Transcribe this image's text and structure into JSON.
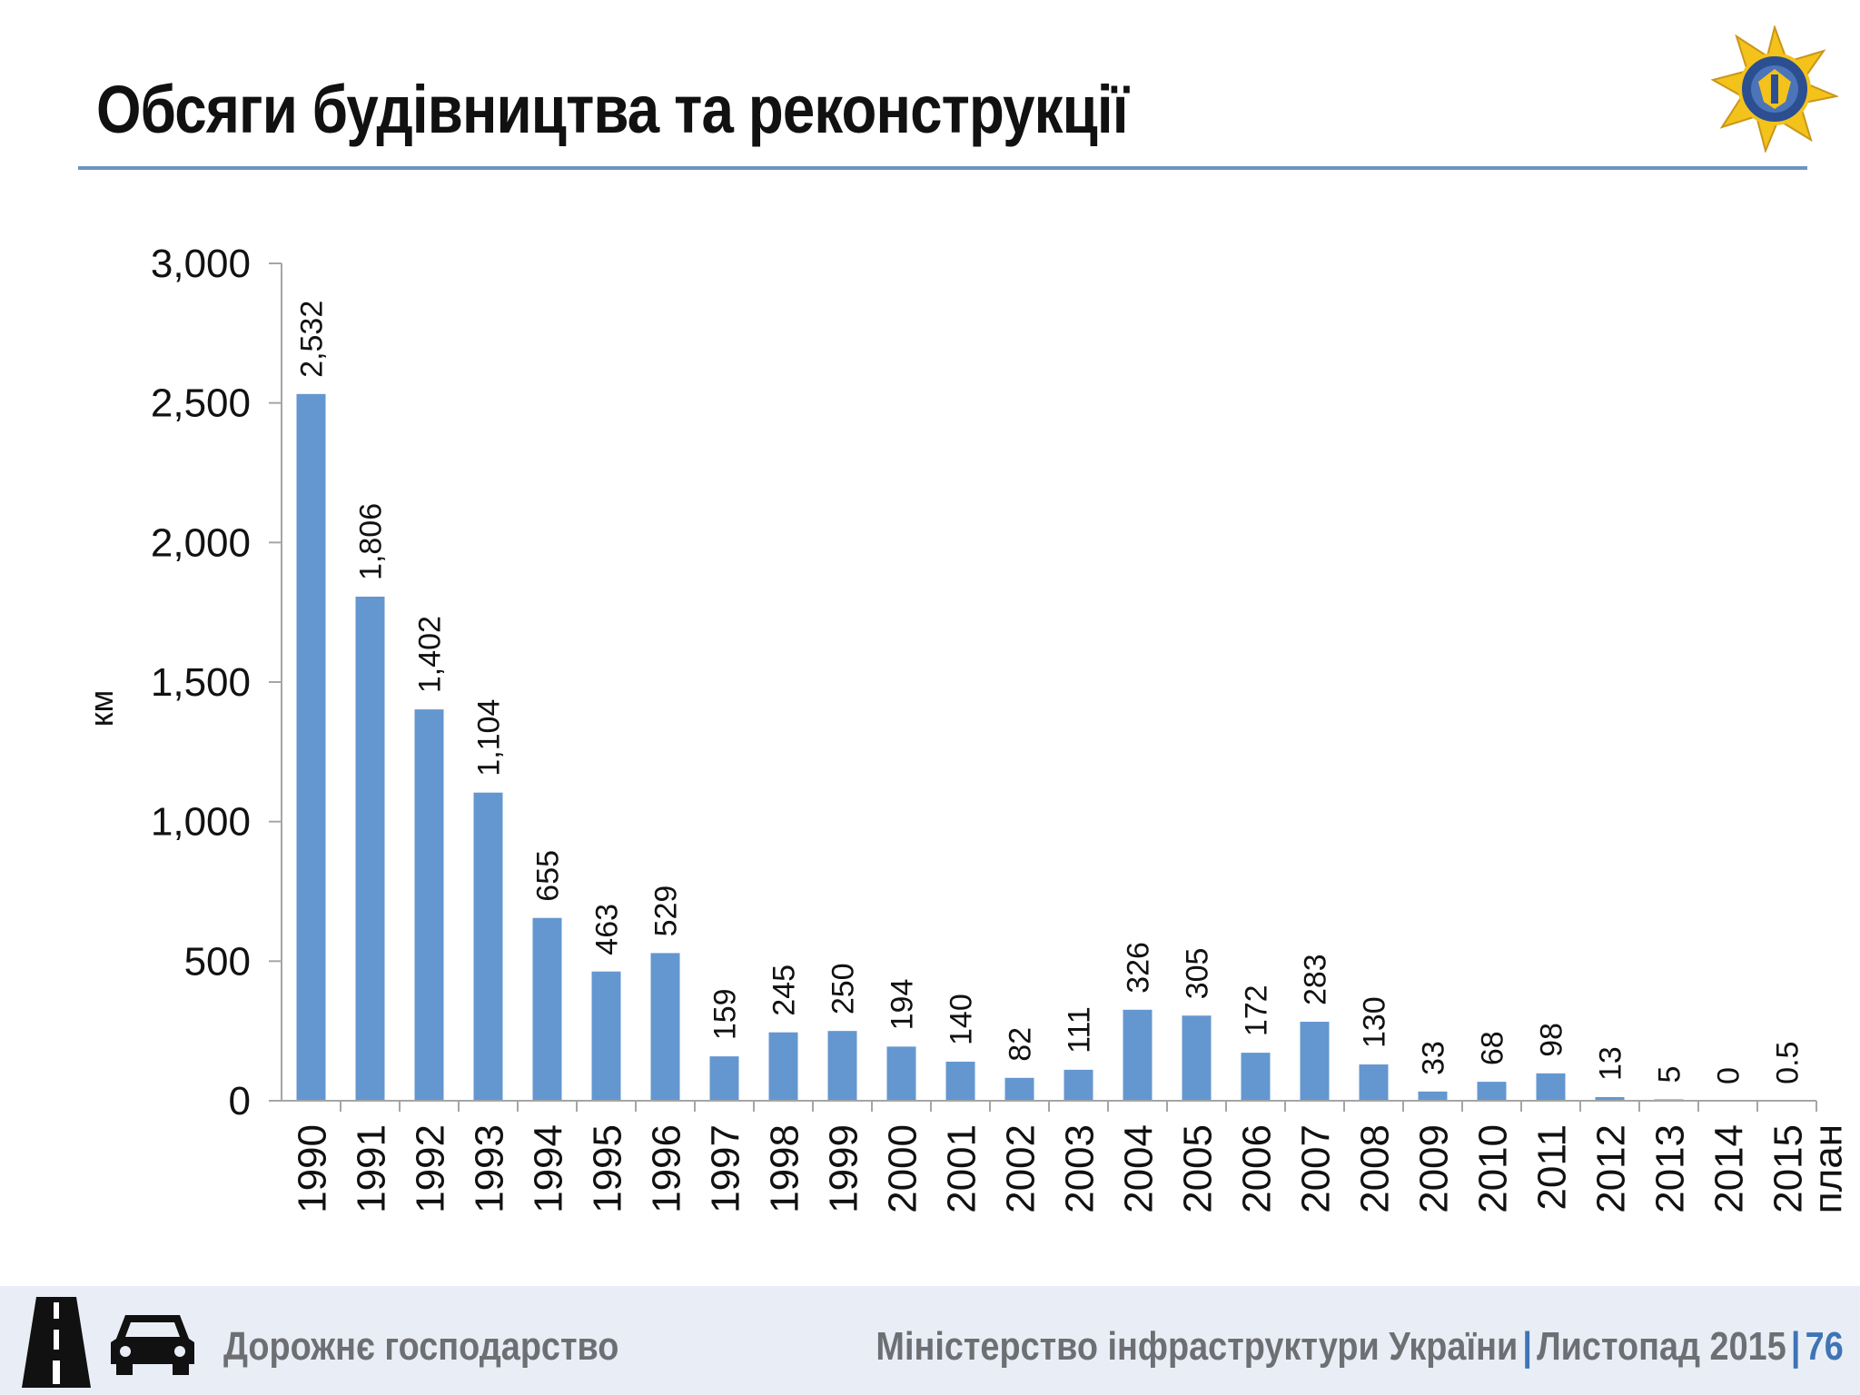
{
  "title": "Обсяги будівництва та реконструкції",
  "footer": {
    "section": "Дорожнє господарство",
    "ministry": "Міністерство інфраструктури України",
    "date": "Листопад 2015",
    "page": "76"
  },
  "icons": {
    "emblem": "ministry-emblem-icon",
    "road": "road-icon",
    "car": "car-icon"
  },
  "colors": {
    "bar": "#6497cf",
    "rule": "#6b94bf",
    "accent": "#3f74b5",
    "footer_bg": "#e9eef6"
  },
  "chart_data": {
    "type": "bar",
    "title": "",
    "xlabel": "",
    "ylabel": "км",
    "ylim": [
      0,
      3000
    ],
    "yticks": [
      0,
      500,
      1000,
      1500,
      2000,
      2500,
      3000
    ],
    "ytick_labels": [
      "0",
      "500",
      "1,000",
      "1,500",
      "2,000",
      "2,500",
      "3,000"
    ],
    "grid": false,
    "categories": [
      "1990",
      "1991",
      "1992",
      "1993",
      "1994",
      "1995",
      "1996",
      "1997",
      "1998",
      "1999",
      "2000",
      "2001",
      "2002",
      "2003",
      "2004",
      "2005",
      "2006",
      "2007",
      "2008",
      "2009",
      "2010",
      "2011",
      "2012",
      "2013",
      "2014",
      "2015 план"
    ],
    "values": [
      2532,
      1806,
      1402,
      1104,
      655,
      463,
      529,
      159,
      245,
      250,
      194,
      140,
      82,
      111,
      326,
      305,
      172,
      283,
      130,
      33,
      68,
      98,
      13,
      5,
      0,
      0.5
    ],
    "value_labels": [
      "2,532",
      "1,806",
      "1,402",
      "1,104",
      "655",
      "463",
      "529",
      "159",
      "245",
      "250",
      "194",
      "140",
      "82",
      "111",
      "326",
      "305",
      "172",
      "283",
      "130",
      "33",
      "68",
      "98",
      "13",
      "5",
      "0",
      "0.5"
    ]
  }
}
